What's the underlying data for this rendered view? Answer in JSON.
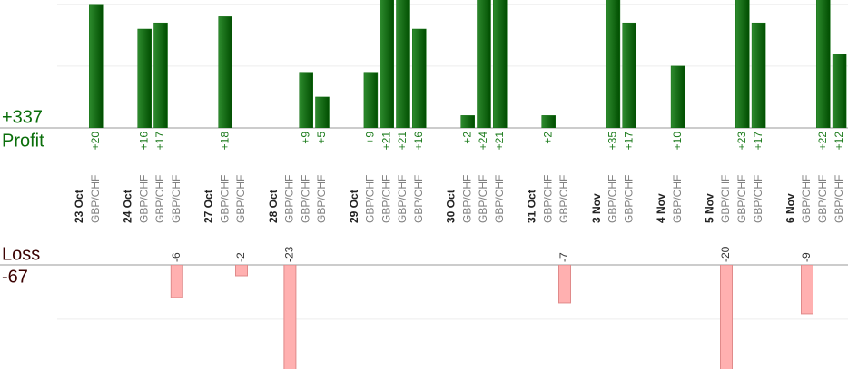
{
  "summary": {
    "profit_total": {
      "value": 337,
      "label": "+337"
    },
    "profit_label": "Profit",
    "loss_label": "Loss",
    "loss_total": -67
  },
  "chart_data": {
    "type": "bar",
    "profit_color": "#0a6a0a",
    "loss_color": "#ffb0b0",
    "profit_ylim": [
      0,
      20.7
    ],
    "profit_yticks": [
      0,
      10,
      20
    ],
    "loss_ylim": [
      -19.2,
      0
    ],
    "loss_yticks": [
      -10,
      0
    ],
    "grid": true,
    "days": [
      {
        "date": "23 Oct",
        "trades": [
          {
            "pair": "GBP/CHF",
            "value": 20,
            "value_label": "+20"
          }
        ]
      },
      {
        "date": "24 Oct",
        "trades": [
          {
            "pair": "GBP/CHF",
            "value": 16,
            "value_label": "+16"
          },
          {
            "pair": "GBP/CHF",
            "value": 17,
            "value_label": "+17"
          },
          {
            "pair": "GBP/CHF",
            "value": -6,
            "value_label": "-6"
          }
        ]
      },
      {
        "date": "27 Oct",
        "trades": [
          {
            "pair": "GBP/CHF",
            "value": 18,
            "value_label": "+18"
          },
          {
            "pair": "GBP/CHF",
            "value": -2,
            "value_label": "-2"
          }
        ]
      },
      {
        "date": "28 Oct",
        "trades": [
          {
            "pair": "GBP/CHF",
            "value": -23,
            "value_label": "-23"
          },
          {
            "pair": "GBP/CHF",
            "value": 9,
            "value_label": "+9"
          },
          {
            "pair": "GBP/CHF",
            "value": 5,
            "value_label": "+5"
          }
        ]
      },
      {
        "date": "29 Oct",
        "trades": [
          {
            "pair": "GBP/CHF",
            "value": 9,
            "value_label": "+9"
          },
          {
            "pair": "GBP/CHF",
            "value": 21,
            "value_label": "+21"
          },
          {
            "pair": "GBP/CHF",
            "value": 21,
            "value_label": "+21"
          },
          {
            "pair": "GBP/CHF",
            "value": 16,
            "value_label": "+16"
          }
        ]
      },
      {
        "date": "30 Oct",
        "trades": [
          {
            "pair": "GBP/CHF",
            "value": 2,
            "value_label": "+2"
          },
          {
            "pair": "GBP/CHF",
            "value": 24,
            "value_label": "+24"
          },
          {
            "pair": "GBP/CHF",
            "value": 21,
            "value_label": "+21"
          }
        ]
      },
      {
        "date": "31 Oct",
        "trades": [
          {
            "pair": "GBP/CHF",
            "value": 2,
            "value_label": "+2"
          },
          {
            "pair": "GBP/CHF",
            "value": -7,
            "value_label": "-7"
          }
        ]
      },
      {
        "date": "3 Nov",
        "trades": [
          {
            "pair": "GBP/CHF",
            "value": 35,
            "value_label": "+35"
          },
          {
            "pair": "GBP/CHF",
            "value": 17,
            "value_label": "+17"
          }
        ]
      },
      {
        "date": "4 Nov",
        "trades": [
          {
            "pair": "GBP/CHF",
            "value": 10,
            "value_label": "+10"
          }
        ]
      },
      {
        "date": "5 Nov",
        "trades": [
          {
            "pair": "GBP/CHF",
            "value": -20,
            "value_label": "-20"
          },
          {
            "pair": "GBP/CHF",
            "value": 23,
            "value_label": "+23"
          },
          {
            "pair": "GBP/CHF",
            "value": 17,
            "value_label": "+17"
          }
        ]
      },
      {
        "date": "6 Nov",
        "trades": [
          {
            "pair": "GBP/CHF",
            "value": -9,
            "value_label": "-9"
          },
          {
            "pair": "GBP/CHF",
            "value": 22,
            "value_label": "+22"
          },
          {
            "pair": "GBP/CHF",
            "value": 12,
            "value_label": "+12"
          }
        ]
      }
    ]
  }
}
